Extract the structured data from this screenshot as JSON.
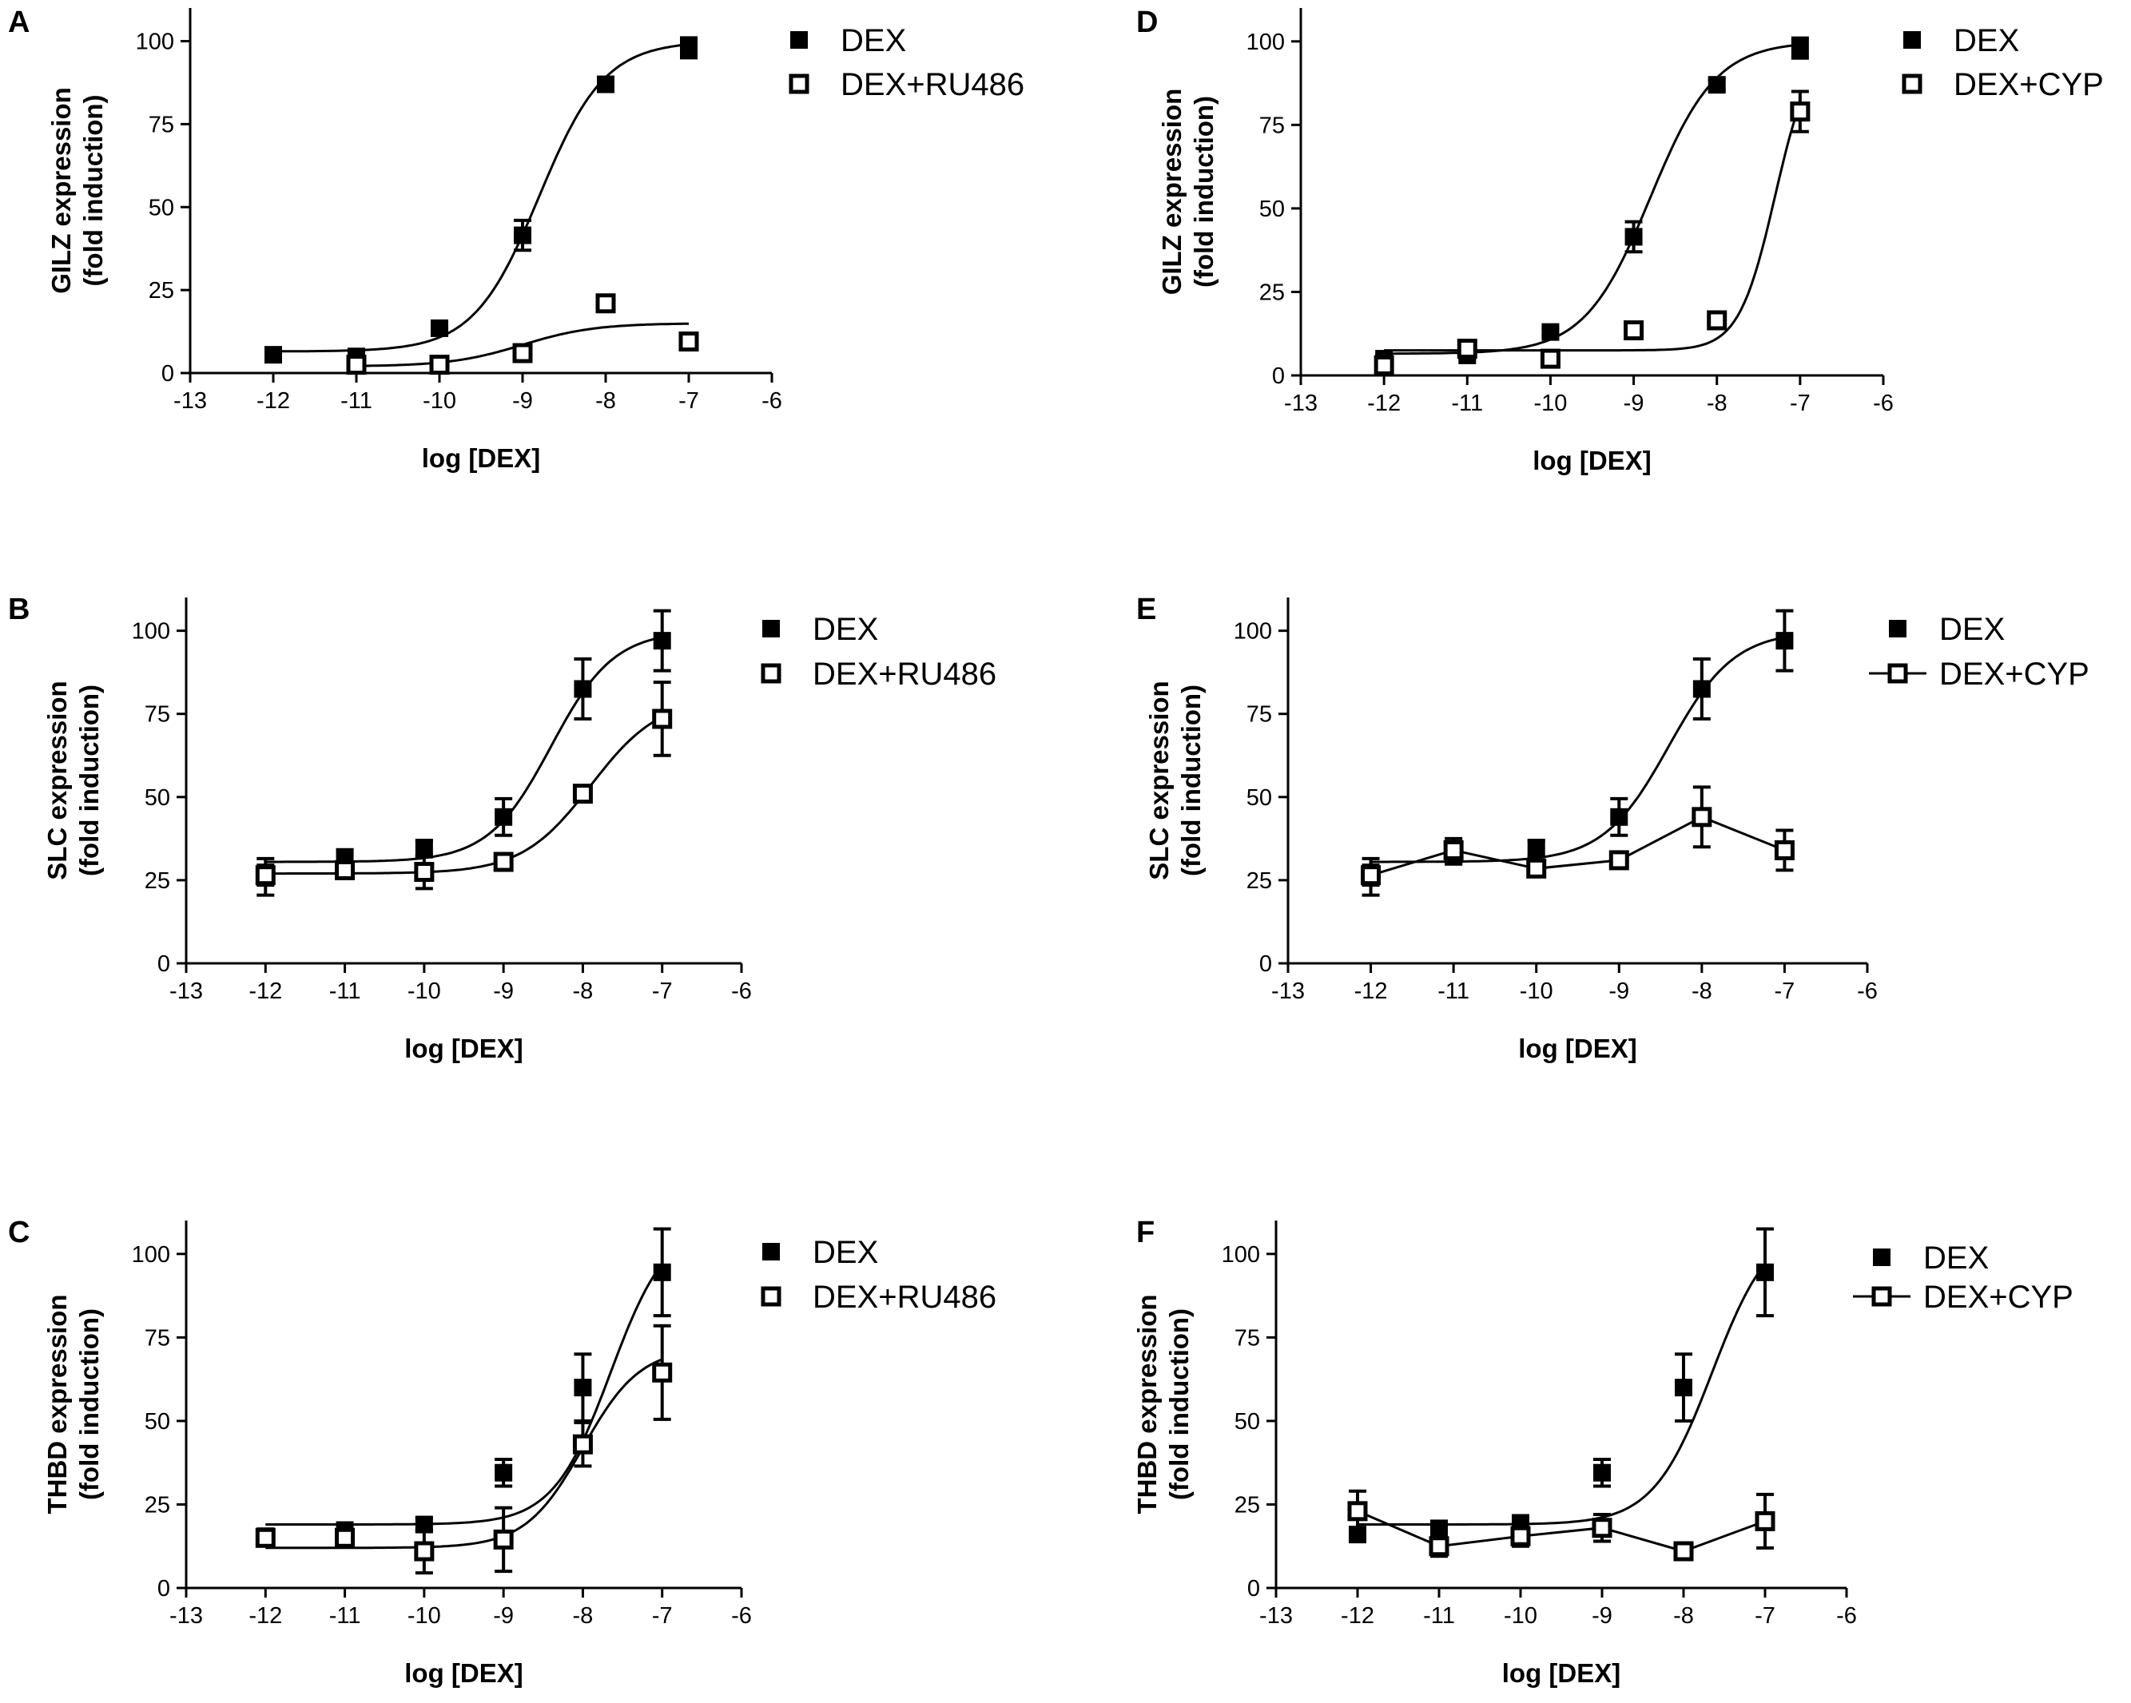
{
  "figure": {
    "x_tick_labels": [
      "-13",
      "-12",
      "-11",
      "-10",
      "-9",
      "-8",
      "-7",
      "-6"
    ],
    "y_tick_labels": [
      "0",
      "25",
      "50",
      "75",
      "100"
    ]
  },
  "chart_data": [
    {
      "panel": "A",
      "type": "line",
      "title": "",
      "xlabel": "log [DEX]",
      "ylabel_line1": "GILZ expression",
      "ylabel_line2": "(fold induction)",
      "xlim": [
        -13,
        -6
      ],
      "ylim": [
        0,
        110
      ],
      "legend_line_for_open": false,
      "series": [
        {
          "name": "DEX",
          "marker": "filled-square",
          "points": [
            [
              -12,
              5.5,
              0
            ],
            [
              -11,
              5,
              1
            ],
            [
              -10,
              13.5,
              1
            ],
            [
              -9,
              41.5,
              4.5
            ],
            [
              -8,
              87,
              1.5
            ],
            [
              -7,
              98,
              3
            ]
          ],
          "fit": {
            "bottom": 6.5,
            "top": 100,
            "logec50": -8.8,
            "hill": 1.1
          }
        },
        {
          "name": "DEX+RU486",
          "marker": "open-square",
          "points": [
            [
              -11,
              2.5,
              0
            ],
            [
              -10,
              2.5,
              0
            ],
            [
              -9,
              6,
              0
            ],
            [
              -8,
              21,
              0
            ],
            [
              -7,
              9.5,
              0
            ]
          ],
          "fit": {
            "bottom": 2,
            "top": 15,
            "logec50": -9.0,
            "hill": 1.0
          }
        }
      ]
    },
    {
      "panel": "B",
      "type": "line",
      "title": "",
      "xlabel": "log [DEX]",
      "ylabel_line1": "SLC expression",
      "ylabel_line2": "(fold induction)",
      "xlim": [
        -13,
        -6
      ],
      "ylim": [
        0,
        110
      ],
      "legend_line_for_open": false,
      "series": [
        {
          "name": "DEX",
          "marker": "filled-square",
          "points": [
            [
              -12,
              26,
              5.5
            ],
            [
              -11,
              32,
              2
            ],
            [
              -10,
              34.5,
              2.5
            ],
            [
              -9,
              44,
              5.5
            ],
            [
              -8,
              82.5,
              9
            ],
            [
              -7,
              97,
              9
            ]
          ],
          "fit": {
            "bottom": 30.5,
            "top": 100,
            "logec50": -8.4,
            "hill": 1.1
          }
        },
        {
          "name": "DEX+RU486",
          "marker": "open-square",
          "points": [
            [
              -12,
              26.5,
              3
            ],
            [
              -11,
              28,
              2
            ],
            [
              -10,
              27.5,
              5
            ],
            [
              -9,
              30.5,
              1.5
            ],
            [
              -8,
              51,
              1.5
            ],
            [
              -7,
              73.5,
              11
            ]
          ],
          "fit": {
            "bottom": 27,
            "top": 80,
            "logec50": -7.9,
            "hill": 1.0
          }
        }
      ]
    },
    {
      "panel": "C",
      "type": "line",
      "title": "",
      "xlabel": "log [DEX]",
      "ylabel_line1": "THBD expression",
      "ylabel_line2": "(fold induction)",
      "xlim": [
        -13,
        -6
      ],
      "ylim": [
        0,
        110
      ],
      "legend_line_for_open": false,
      "series": [
        {
          "name": "DEX",
          "marker": "filled-square",
          "points": [
            [
              -12,
              15.5,
              2
            ],
            [
              -11,
              16.5,
              3
            ],
            [
              -10,
              19,
              2
            ],
            [
              -9,
              34.5,
              4
            ],
            [
              -8,
              60,
              10
            ],
            [
              -7,
              94.5,
              13
            ]
          ],
          "fit": {
            "bottom": 19,
            "top": 110,
            "logec50": -7.65,
            "hill": 1.2
          }
        },
        {
          "name": "DEX+RU486",
          "marker": "open-square",
          "points": [
            [
              -12,
              15,
              1
            ],
            [
              -11,
              15,
              1
            ],
            [
              -10,
              11,
              6.5
            ],
            [
              -9,
              14.5,
              9.5
            ],
            [
              -8,
              43,
              6.5
            ],
            [
              -7,
              64.5,
              14
            ]
          ],
          "fit": {
            "bottom": 12,
            "top": 72,
            "logec50": -8.0,
            "hill": 1.2
          }
        }
      ]
    },
    {
      "panel": "D",
      "type": "line",
      "title": "",
      "xlabel": "log [DEX]",
      "ylabel_line1": "GILZ expression",
      "ylabel_line2": "(fold induction)",
      "xlim": [
        -13,
        -6
      ],
      "ylim": [
        0,
        110
      ],
      "legend_line_for_open": false,
      "series": [
        {
          "name": "DEX",
          "marker": "filled-square",
          "points": [
            [
              -12,
              5,
              1
            ],
            [
              -11,
              6,
              1
            ],
            [
              -10,
              13,
              1
            ],
            [
              -9,
              41.5,
              4.5
            ],
            [
              -8,
              87,
              1.5
            ],
            [
              -7,
              98,
              3
            ]
          ],
          "fit": {
            "bottom": 6.5,
            "top": 100,
            "logec50": -8.8,
            "hill": 1.1
          }
        },
        {
          "name": "DEX+CYP",
          "marker": "open-square",
          "points": [
            [
              -12,
              3,
              0
            ],
            [
              -11,
              8,
              0
            ],
            [
              -10,
              5,
              0
            ],
            [
              -9,
              13.5,
              0
            ],
            [
              -8,
              16.5,
              0
            ],
            [
              -7,
              79,
              6
            ]
          ],
          "fit": {
            "bottom": 7.5,
            "top": 100,
            "logec50": -7.3,
            "hill": 2.0
          }
        }
      ]
    },
    {
      "panel": "E",
      "type": "line",
      "title": "",
      "xlabel": "log [DEX]",
      "ylabel_line1": "SLC expression",
      "ylabel_line2": "(fold induction)",
      "xlim": [
        -13,
        -6
      ],
      "ylim": [
        0,
        110
      ],
      "legend_line_for_open": true,
      "series": [
        {
          "name": "DEX",
          "marker": "filled-square",
          "points": [
            [
              -12,
              26,
              5.5
            ],
            [
              -11,
              32,
              2
            ],
            [
              -10,
              34.5,
              2.5
            ],
            [
              -9,
              44,
              5.5
            ],
            [
              -8,
              82.5,
              9
            ],
            [
              -7,
              97,
              9
            ]
          ],
          "fit": {
            "bottom": 30.5,
            "top": 100,
            "logec50": -8.4,
            "hill": 1.1
          }
        },
        {
          "name": "DEX+CYP",
          "marker": "open-square",
          "points": [
            [
              -12,
              26.5,
              3
            ],
            [
              -11,
              34,
              3.5
            ],
            [
              -10,
              28.5,
              2
            ],
            [
              -9,
              31,
              2
            ],
            [
              -8,
              44,
              9
            ],
            [
              -7,
              34,
              6
            ]
          ],
          "fit": null
        }
      ]
    },
    {
      "panel": "F",
      "type": "line",
      "title": "",
      "xlabel": "log [DEX]",
      "ylabel_line1": "THBD expression",
      "ylabel_line2": "(fold induction)",
      "xlim": [
        -13,
        -6
      ],
      "ylim": [
        0,
        110
      ],
      "legend_line_for_open": true,
      "series": [
        {
          "name": "DEX",
          "marker": "filled-square",
          "points": [
            [
              -12,
              16,
              2
            ],
            [
              -11,
              17,
              3
            ],
            [
              -10,
              19.5,
              2
            ],
            [
              -9,
              34.5,
              4
            ],
            [
              -8,
              60,
              10
            ],
            [
              -7,
              94.5,
              13
            ]
          ],
          "fit": {
            "bottom": 19,
            "top": 110,
            "logec50": -7.65,
            "hill": 1.2
          }
        },
        {
          "name": "DEX+CYP",
          "marker": "open-square",
          "points": [
            [
              -12,
              23,
              6
            ],
            [
              -11,
              12.5,
              3
            ],
            [
              -10,
              15.5,
              3
            ],
            [
              -9,
              18,
              4
            ],
            [
              -8,
              11,
              1
            ],
            [
              -7,
              20,
              8
            ]
          ],
          "fit": null
        }
      ]
    }
  ]
}
